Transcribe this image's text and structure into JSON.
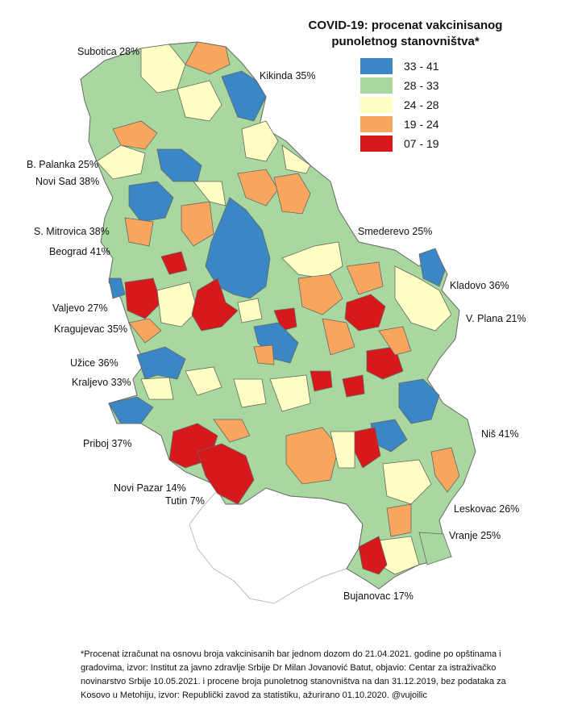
{
  "title": {
    "line1": "COVID-19: procenat vakcinisanog",
    "line2": "punoletnog stanovništva*"
  },
  "legend": [
    {
      "label": "33 - 41",
      "color": "#3b86c4"
    },
    {
      "label": "28 - 33",
      "color": "#a8d8a0"
    },
    {
      "label": "24 - 28",
      "color": "#ffffc4"
    },
    {
      "label": "19 - 24",
      "color": "#f8a65e"
    },
    {
      "label": "07 - 19",
      "color": "#d7191c"
    }
  ],
  "colors": {
    "boundary": "#666666",
    "kosovo_fill": "#ffffff",
    "kosovo_border": "#bbbbbb"
  },
  "cities": [
    {
      "label": "Subotica 28%"
    },
    {
      "label": "Kikinda 35%"
    },
    {
      "label": "B. Palanka 25%"
    },
    {
      "label": "Novi Sad 38%"
    },
    {
      "label": "S. Mitrovica 38%"
    },
    {
      "label": "Smederevo 25%"
    },
    {
      "label": "Beograd 41%"
    },
    {
      "label": "Kladovo 36%"
    },
    {
      "label": "Valjevo 27%"
    },
    {
      "label": "V. Plana 21%"
    },
    {
      "label": "Kragujevac 35%"
    },
    {
      "label": "Užice 36%"
    },
    {
      "label": "Kraljevo 33%"
    },
    {
      "label": "Niš 41%"
    },
    {
      "label": "Priboj 37%"
    },
    {
      "label": "Novi Pazar 14%"
    },
    {
      "label": "Tutin 7%"
    },
    {
      "label": "Leskovac 26%"
    },
    {
      "label": "Vranje 25%"
    },
    {
      "label": "Bujanovac 17%"
    }
  ],
  "footnote": "*Procenat izračunat na osnovu broja vakcinisanih bar jednom dozom do 21.04.2021. godine po opštinama i gradovima, izvor: Institut za javno zdravlje Srbije Dr Milan Jovanović Batut, objavio: Centar za istraživačko novinarstvo Srbije 10.05.2021. i procene broja punoletnog stanovništva na dan 31.12.2019, bez podataka za Kosovo u Metohiju, izvor: Republički zavod za statistiku, ažurirano 01.10.2020. @vujoilic"
}
